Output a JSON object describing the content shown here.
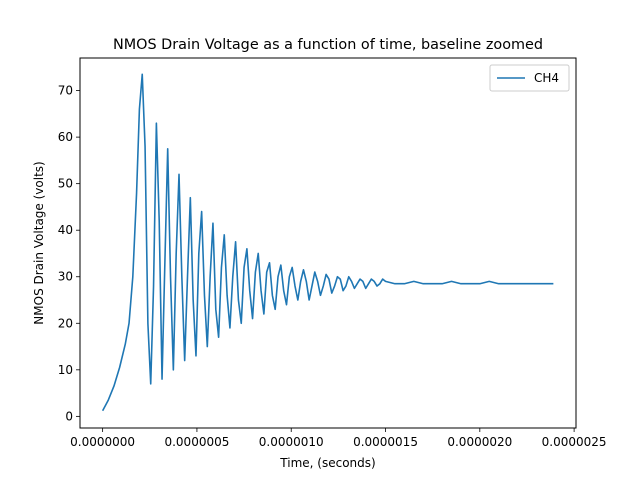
{
  "chart_data": {
    "type": "line",
    "title": "NMOS Drain Voltage as a function of time, baseline zoomed",
    "xlabel": "Time, (seconds)",
    "ylabel": "NMOS Drain Voltage (volts)",
    "xlim": [
      -1.2e-07,
      2.51e-06
    ],
    "ylim": [
      -2.5,
      77
    ],
    "xticks": [
      0,
      5e-07,
      1e-06,
      1.5e-06,
      2e-06,
      2.5e-06
    ],
    "xtick_labels": [
      "0.0000000",
      "0.0000005",
      "0.0000010",
      "0.0000015",
      "0.0000020",
      "0.0000025"
    ],
    "yticks": [
      0,
      10,
      20,
      30,
      40,
      50,
      60,
      70
    ],
    "ytick_labels": [
      "0",
      "10",
      "20",
      "30",
      "40",
      "50",
      "60",
      "70"
    ],
    "grid": false,
    "legend": "top-right",
    "colors": {
      "ch4": "#1f77b4"
    },
    "series": [
      {
        "name": "CH4",
        "x": [
          0,
          3e-08,
          6e-08,
          9e-08,
          1.2e-07,
          1.4e-07,
          1.6e-07,
          1.8e-07,
          1.95e-07,
          2.1e-07,
          2.25e-07,
          2.4e-07,
          2.55e-07,
          2.7e-07,
          2.85e-07,
          3e-07,
          3.15e-07,
          3.3e-07,
          3.45e-07,
          3.6e-07,
          3.75e-07,
          3.9e-07,
          4.05e-07,
          4.2e-07,
          4.35e-07,
          4.5e-07,
          4.65e-07,
          4.8e-07,
          4.95e-07,
          5.1e-07,
          5.25e-07,
          5.4e-07,
          5.55e-07,
          5.7e-07,
          5.85e-07,
          6e-07,
          6.15e-07,
          6.3e-07,
          6.45e-07,
          6.6e-07,
          6.75e-07,
          6.9e-07,
          7.05e-07,
          7.2e-07,
          7.35e-07,
          7.5e-07,
          7.65e-07,
          7.8e-07,
          7.95e-07,
          8.1e-07,
          8.25e-07,
          8.4e-07,
          8.55e-07,
          8.7e-07,
          8.85e-07,
          9e-07,
          9.15e-07,
          9.3e-07,
          9.45e-07,
          9.6e-07,
          9.75e-07,
          9.9e-07,
          1.005e-06,
          1.02e-06,
          1.035e-06,
          1.05e-06,
          1.065e-06,
          1.08e-06,
          1.095e-06,
          1.11e-06,
          1.125e-06,
          1.14e-06,
          1.155e-06,
          1.17e-06,
          1.185e-06,
          1.2e-06,
          1.215e-06,
          1.23e-06,
          1.245e-06,
          1.26e-06,
          1.275e-06,
          1.29e-06,
          1.305e-06,
          1.32e-06,
          1.335e-06,
          1.35e-06,
          1.365e-06,
          1.38e-06,
          1.395e-06,
          1.41e-06,
          1.425e-06,
          1.44e-06,
          1.455e-06,
          1.47e-06,
          1.485e-06,
          1.5e-06,
          1.55e-06,
          1.6e-06,
          1.65e-06,
          1.7e-06,
          1.75e-06,
          1.8e-06,
          1.85e-06,
          1.9e-06,
          1.95e-06,
          2e-06,
          2.05e-06,
          2.1e-06,
          2.15e-06,
          2.2e-06,
          2.25e-06,
          2.3e-06,
          2.35e-06,
          2.39e-06
        ],
        "values": [
          1.2,
          3.5,
          6.5,
          10.5,
          15.5,
          20,
          30,
          48,
          66,
          73.5,
          58,
          20,
          7,
          28,
          63,
          42,
          8,
          33,
          57.5,
          30,
          10,
          35,
          52,
          30,
          12,
          30,
          47,
          25,
          13,
          35,
          44,
          26,
          15,
          30,
          41.5,
          23,
          17,
          32,
          39,
          26,
          19,
          30,
          37.5,
          25,
          20,
          32,
          36,
          27,
          21,
          31,
          35,
          27,
          22,
          31,
          33,
          26,
          23,
          30,
          32.5,
          27,
          24,
          30,
          32,
          28,
          25,
          29,
          31.5,
          29,
          25,
          28,
          31,
          29,
          26,
          28,
          30.5,
          29.5,
          26.5,
          28,
          30,
          29.5,
          27,
          28,
          30,
          29,
          27.5,
          28.5,
          29.5,
          29,
          27.5,
          28.5,
          29.5,
          29,
          28,
          28.5,
          29.5,
          29,
          28.5,
          28.5,
          29,
          28.5,
          28.5,
          28.5,
          29,
          28.5,
          28.5,
          28.5,
          29,
          28.5,
          28.5,
          28.5,
          28.5,
          28.5,
          28.5,
          28.5
        ]
      }
    ]
  }
}
